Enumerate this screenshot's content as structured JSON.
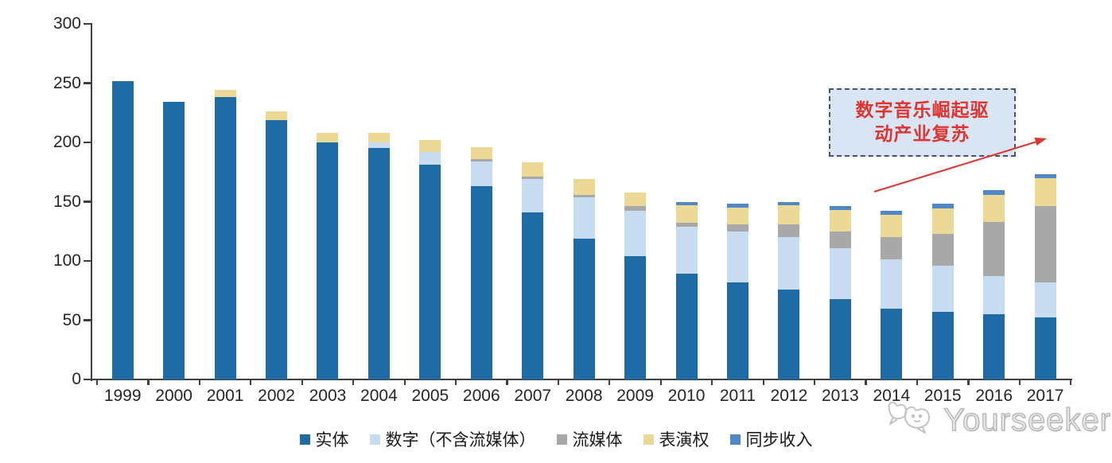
{
  "chart_data": {
    "type": "bar",
    "stacked": true,
    "title": "",
    "xlabel": "",
    "ylabel": "",
    "categories": [
      "1999",
      "2000",
      "2001",
      "2002",
      "2003",
      "2004",
      "2005",
      "2006",
      "2007",
      "2008",
      "2009",
      "2010",
      "2011",
      "2012",
      "2013",
      "2014",
      "2015",
      "2016",
      "2017"
    ],
    "ylim": [
      0,
      300
    ],
    "yticks": [
      0,
      50,
      100,
      150,
      200,
      250,
      300
    ],
    "grid": false,
    "legend_position": "bottom",
    "axis_color": "#404040",
    "tick_label_color": "#262626",
    "series": [
      {
        "name": "实体",
        "key": "physical",
        "color": "#1F6BA6",
        "values": [
          252,
          234,
          238,
          219,
          200,
          195,
          181,
          163,
          141,
          119,
          104,
          89,
          82,
          76,
          68,
          60,
          57,
          55,
          52
        ]
      },
      {
        "name": "数字（不含流媒体）",
        "key": "digital-excl-streaming",
        "color": "#C7DBF1",
        "values": [
          0,
          0,
          0,
          0,
          0,
          5,
          11,
          21,
          28,
          35,
          38,
          40,
          43,
          44,
          43,
          41,
          39,
          32,
          30
        ]
      },
      {
        "name": "流媒体",
        "key": "streaming",
        "color": "#A8A8A8",
        "values": [
          0,
          0,
          0,
          0,
          0,
          0,
          0,
          2,
          2,
          2,
          4,
          3,
          6,
          11,
          14,
          19,
          27,
          46,
          64
        ]
      },
      {
        "name": "表演权",
        "key": "performance-rights",
        "color": "#EDD996",
        "values": [
          0,
          0,
          6,
          7,
          8,
          8,
          10,
          10,
          12,
          13,
          12,
          15,
          14,
          16,
          18,
          19,
          21,
          23,
          24
        ]
      },
      {
        "name": "同步收入",
        "key": "sync-revenue",
        "color": "#4E88C8",
        "values": [
          0,
          0,
          0,
          0,
          0,
          0,
          0,
          0,
          0,
          0,
          0,
          3,
          3,
          3,
          3,
          3,
          4,
          4,
          3
        ]
      }
    ],
    "totals": [
      252,
      234,
      244,
      226,
      208,
      208,
      202,
      196,
      183,
      169,
      158,
      150,
      148,
      150,
      146,
      142,
      148,
      160,
      173
    ]
  },
  "annotation": {
    "line1": "数字音乐崛起驱",
    "line2": "动产业复苏",
    "text_color": "#DF3430",
    "border_color": "#44546A",
    "background": "#DAE5F4",
    "arrow_color": "#DF3430"
  },
  "watermark": {
    "text": "Yourseeker",
    "icon": "cat-logo-icon",
    "color": "#C9C9C9"
  }
}
